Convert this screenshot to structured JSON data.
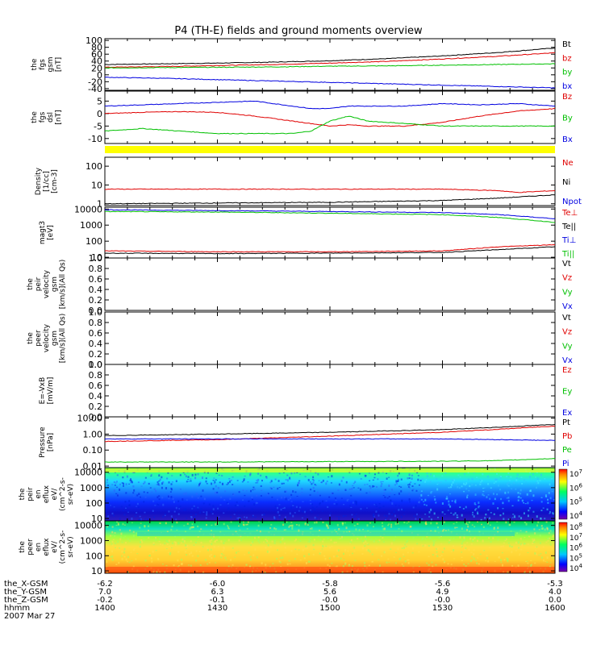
{
  "chart_data": {
    "type": "line",
    "title": "P4 (TH-E) fields and ground moments overview",
    "time_axis": {
      "date": "2007 Mar 27",
      "rows": [
        {
          "label": "the_X-GSM",
          "values": [
            "-6.2",
            "-6.0",
            "-5.8",
            "-5.6",
            "-5.3"
          ]
        },
        {
          "label": "the_Y-GSM",
          "values": [
            "7.0",
            "6.3",
            "5.6",
            "4.9",
            "4.0"
          ]
        },
        {
          "label": "the_Z-GSM",
          "values": [
            "-0.2",
            "-0.1",
            "-0.0",
            "-0.0",
            "0.0"
          ]
        },
        {
          "label": "hhmm",
          "values": [
            "1400",
            "1430",
            "1500",
            "1530",
            "1600"
          ]
        }
      ]
    },
    "panels": [
      {
        "id": "fgs_gsm",
        "ylabel": [
          "the",
          "fgs",
          "gsm",
          "[nT]"
        ],
        "scale": "linear",
        "ylim": [
          -45,
          105
        ],
        "ticks": [
          "100",
          "80",
          "60",
          "40",
          "20",
          "0",
          "-20",
          "-40"
        ],
        "tick_values": [
          100,
          80,
          60,
          40,
          20,
          0,
          -20,
          -40
        ],
        "legend": [
          {
            "name": "Bt",
            "color": "#000000"
          },
          {
            "name": "bz",
            "color": "#e00000"
          },
          {
            "name": "by",
            "color": "#00c000"
          },
          {
            "name": "bx",
            "color": "#0000e0"
          }
        ],
        "series": [
          {
            "name": "Bt",
            "color": "#000000",
            "x": [
              1400,
              1415,
              1430,
              1445,
              1500,
              1515,
              1530,
              1545,
              1600
            ],
            "y": [
              30,
              32,
              34,
              37,
              41,
              47,
              55,
              65,
              78
            ]
          },
          {
            "name": "bz",
            "color": "#e00000",
            "x": [
              1400,
              1415,
              1430,
              1445,
              1500,
              1515,
              1530,
              1545,
              1600
            ],
            "y": [
              22,
              24,
              27,
              30,
              34,
              39,
              46,
              54,
              64
            ]
          },
          {
            "name": "by",
            "color": "#00c000",
            "x": [
              1400,
              1415,
              1430,
              1445,
              1500,
              1515,
              1530,
              1545,
              1600
            ],
            "y": [
              20,
              21,
              22,
              23,
              25,
              26,
              28,
              30,
              32
            ]
          },
          {
            "name": "bx",
            "color": "#0000e0",
            "x": [
              1400,
              1415,
              1430,
              1445,
              1500,
              1515,
              1530,
              1545,
              1600
            ],
            "y": [
              -7,
              -10,
              -14,
              -18,
              -22,
              -26,
              -30,
              -34,
              -38
            ]
          }
        ]
      },
      {
        "id": "fgs_dsl",
        "ylabel": [
          "the",
          "fgs",
          "dsl",
          "[nT]"
        ],
        "scale": "linear",
        "ylim": [
          -12,
          9
        ],
        "ticks": [
          "5",
          "0",
          "-5",
          "-10"
        ],
        "tick_values": [
          5,
          0,
          -5,
          -10
        ],
        "legend": [
          {
            "name": "Bz",
            "color": "#e00000"
          },
          {
            "name": "By",
            "color": "#00c000"
          },
          {
            "name": "Bx",
            "color": "#0000e0"
          }
        ],
        "series": [
          {
            "name": "Bz",
            "color": "#e00000",
            "x": [
              1400,
              1410,
              1420,
              1430,
              1440,
              1450,
              1455,
              1500,
              1505,
              1510,
              1520,
              1530,
              1540,
              1550,
              1600
            ],
            "y": [
              0,
              0.5,
              0.8,
              0.5,
              -1,
              -3,
              -4,
              -5,
              -4.5,
              -5,
              -5,
              -3.5,
              -1,
              1,
              2
            ]
          },
          {
            "name": "By",
            "color": "#00c000",
            "x": [
              1400,
              1410,
              1420,
              1430,
              1440,
              1450,
              1455,
              1500,
              1505,
              1510,
              1520,
              1530,
              1540,
              1550,
              1600
            ],
            "y": [
              -7,
              -6,
              -7,
              -8,
              -8,
              -8,
              -7,
              -3,
              -1,
              -3,
              -4,
              -5,
              -5,
              -5,
              -5
            ]
          },
          {
            "name": "Bx",
            "color": "#0000e0",
            "x": [
              1400,
              1410,
              1420,
              1430,
              1440,
              1450,
              1455,
              1500,
              1505,
              1510,
              1520,
              1530,
              1540,
              1550,
              1600
            ],
            "y": [
              3,
              3.5,
              4,
              4.5,
              5,
              3,
              2,
              2,
              3,
              3,
              3,
              4,
              3.5,
              4,
              3
            ]
          }
        ]
      },
      {
        "id": "flag_bar",
        "ylabel": [],
        "scale": "flag",
        "flag_color": "#ffff00"
      },
      {
        "id": "density",
        "ylabel": [
          "Density",
          "[1/cc]",
          "[cm-3]"
        ],
        "scale": "log",
        "ylim": [
          0.8,
          300
        ],
        "ticks": [
          "100",
          "10",
          "1"
        ],
        "tick_values": [
          100,
          10,
          1
        ],
        "legend": [
          {
            "name": "Ne",
            "color": "#e00000"
          },
          {
            "name": "Ni",
            "color": "#000000"
          },
          {
            "name": "Npot",
            "color": "#0000e0"
          }
        ],
        "series": [
          {
            "name": "Ne",
            "color": "#e00000",
            "x": [
              1400,
              1430,
              1500,
              1530,
              1545,
              1550,
              1600
            ],
            "y": [
              6,
              6,
              6,
              6,
              5,
              4,
              5
            ]
          },
          {
            "name": "Ni",
            "color": "#000000",
            "x": [
              1400,
              1430,
              1500,
              1530,
              1545,
              1600
            ],
            "y": [
              1,
              1.1,
              1.2,
              1.5,
              2,
              3
            ]
          }
        ]
      },
      {
        "id": "temperature",
        "ylabel": [
          "magt3",
          "[eV]"
        ],
        "scale": "log",
        "ylim": [
          9,
          13000
        ],
        "ticks": [
          "10000",
          "1000",
          "100",
          "10"
        ],
        "tick_values": [
          10000,
          1000,
          100,
          10
        ],
        "legend": [
          {
            "name": "Te⊥",
            "color": "#e00000"
          },
          {
            "name": "Te||",
            "color": "#000000"
          },
          {
            "name": "Ti⊥",
            "color": "#0000e0"
          },
          {
            "name": "Ti||",
            "color": "#00c000"
          }
        ],
        "series": [
          {
            "name": "Ti⊥",
            "color": "#0000e0",
            "x": [
              1400,
              1430,
              1500,
              1530,
              1545,
              1600
            ],
            "y": [
              9000,
              8000,
              7000,
              6000,
              4500,
              2500
            ]
          },
          {
            "name": "Ti||",
            "color": "#00c000",
            "x": [
              1400,
              1430,
              1500,
              1530,
              1545,
              1600
            ],
            "y": [
              7000,
              6500,
              5500,
              4500,
              3000,
              1500
            ]
          },
          {
            "name": "Te⊥",
            "color": "#e00000",
            "x": [
              1400,
              1430,
              1500,
              1530,
              1545,
              1600
            ],
            "y": [
              25,
              22,
              22,
              25,
              45,
              60
            ]
          },
          {
            "name": "Te||",
            "color": "#000000",
            "x": [
              1400,
              1430,
              1500,
              1530,
              1545,
              1600
            ],
            "y": [
              18,
              17,
              18,
              20,
              30,
              45
            ]
          }
        ]
      },
      {
        "id": "peir_velocity",
        "ylabel": [
          "the",
          "peir",
          "velocity",
          "gsm",
          "[km/s](All Qs)"
        ],
        "scale": "linear",
        "ylim": [
          0,
          1.0
        ],
        "ticks": [
          "1.0",
          "0.8",
          "0.6",
          "0.4",
          "0.2",
          "0.0"
        ],
        "tick_values": [
          1.0,
          0.8,
          0.6,
          0.4,
          0.2,
          0.0
        ],
        "legend": [
          {
            "name": "Vt",
            "color": "#000000"
          },
          {
            "name": "Vz",
            "color": "#e00000"
          },
          {
            "name": "Vy",
            "color": "#00c000"
          },
          {
            "name": "Vx",
            "color": "#0000e0"
          }
        ],
        "series": []
      },
      {
        "id": "peer_velocity",
        "ylabel": [
          "the",
          "peer",
          "velocity",
          "gsm",
          "[km/s](All Qs)"
        ],
        "scale": "linear",
        "ylim": [
          0,
          1.0
        ],
        "ticks": [
          "1.0",
          "0.8",
          "0.6",
          "0.4",
          "0.2",
          "0.0"
        ],
        "tick_values": [
          1.0,
          0.8,
          0.6,
          0.4,
          0.2,
          0.0
        ],
        "legend": [
          {
            "name": "Vt",
            "color": "#000000"
          },
          {
            "name": "Vz",
            "color": "#e00000"
          },
          {
            "name": "Vy",
            "color": "#00c000"
          },
          {
            "name": "Vx",
            "color": "#0000e0"
          }
        ],
        "series": []
      },
      {
        "id": "efield",
        "ylabel": [
          "E=-VxB",
          "[mV/m]"
        ],
        "scale": "linear",
        "ylim": [
          0,
          1.0
        ],
        "ticks": [
          "1.0",
          "0.8",
          "0.6",
          "0.4",
          "0.2",
          "0.0"
        ],
        "tick_values": [
          1.0,
          0.8,
          0.6,
          0.4,
          0.2,
          0.0
        ],
        "legend": [
          {
            "name": "Ez",
            "color": "#e00000"
          },
          {
            "name": "Ey",
            "color": "#00c000"
          },
          {
            "name": "Ex",
            "color": "#0000e0"
          }
        ],
        "series": []
      },
      {
        "id": "pressure",
        "ylabel": [
          "Pressure",
          "[nPa]"
        ],
        "scale": "log",
        "ylim": [
          0.008,
          12
        ],
        "ticks": [
          "10.00",
          "1.00",
          "0.10",
          "0.01"
        ],
        "tick_values": [
          10,
          1,
          0.1,
          0.01
        ],
        "legend": [
          {
            "name": "Pt",
            "color": "#000000"
          },
          {
            "name": "Pb",
            "color": "#e00000"
          },
          {
            "name": "Pe",
            "color": "#00c000"
          },
          {
            "name": "Pi",
            "color": "#0000e0"
          }
        ],
        "series": [
          {
            "name": "Pt",
            "color": "#000000",
            "x": [
              1400,
              1430,
              1500,
              1530,
              1545,
              1600
            ],
            "y": [
              0.8,
              1.0,
              1.3,
              1.9,
              2.7,
              4.0
            ]
          },
          {
            "name": "Pb",
            "color": "#e00000",
            "x": [
              1400,
              1430,
              1500,
              1530,
              1545,
              1600
            ],
            "y": [
              0.35,
              0.45,
              0.75,
              1.3,
              2.0,
              3.2
            ]
          },
          {
            "name": "Pi",
            "color": "#0000e0",
            "x": [
              1400,
              1430,
              1500,
              1530,
              1545,
              1600
            ],
            "y": [
              0.5,
              0.5,
              0.5,
              0.5,
              0.45,
              0.4
            ]
          },
          {
            "name": "Pe",
            "color": "#00c000",
            "x": [
              1400,
              1430,
              1500,
              1530,
              1545,
              1600
            ],
            "y": [
              0.018,
              0.018,
              0.019,
              0.02,
              0.022,
              0.03
            ]
          }
        ]
      },
      {
        "id": "peir_spectrogram",
        "ylabel": [
          "the",
          "peir",
          "en",
          "eflux",
          "eV/",
          "(cm^2-s-",
          "sr-eV)"
        ],
        "scale": "spectrogram",
        "ylim": [
          7,
          20000
        ],
        "ticks": [
          "10000",
          "1000",
          "100",
          "10"
        ],
        "tick_values": [
          10000,
          1000,
          100,
          10
        ],
        "colorbar": [
          "10^7",
          "10^6",
          "10^5",
          "10^4"
        ]
      },
      {
        "id": "peer_spectrogram",
        "ylabel": [
          "the",
          "peer",
          "en",
          "eflux",
          "eV/",
          "(cm^2-s-",
          "sr-eV)"
        ],
        "scale": "spectrogram",
        "ylim": [
          7,
          20000
        ],
        "ticks": [
          "10000",
          "1000",
          "100",
          "10"
        ],
        "tick_values": [
          10000,
          1000,
          100,
          10
        ],
        "colorbar": [
          "10^8",
          "10^7",
          "10^6",
          "10^5",
          "10^4"
        ]
      }
    ]
  }
}
